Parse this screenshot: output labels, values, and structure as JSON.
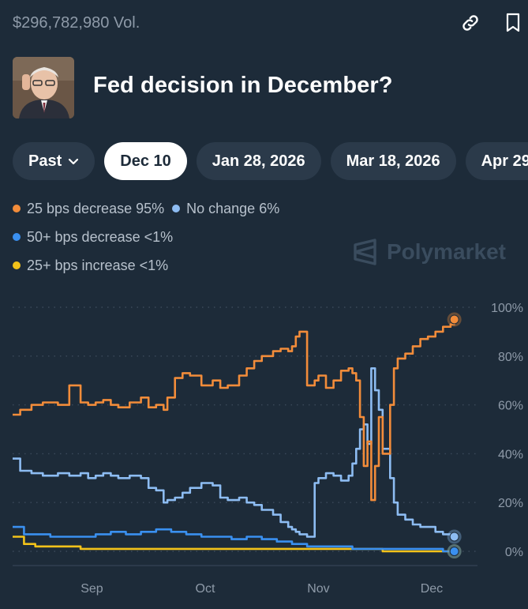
{
  "header": {
    "volume": "$296,782,980 Vol."
  },
  "icons": {
    "link": "link-icon",
    "bookmark": "bookmark-icon"
  },
  "market": {
    "title": "Fed decision in December?",
    "avatar": "fed-chair-portrait"
  },
  "pills": [
    {
      "label": "Past",
      "has_chevron": true,
      "active": false
    },
    {
      "label": "Dec 10",
      "active": true
    },
    {
      "label": "Jan 28, 2026",
      "active": false
    },
    {
      "label": "Mar 18, 2026",
      "active": false
    },
    {
      "label": "Apr 29",
      "active": false
    }
  ],
  "legend": [
    {
      "label": "25 bps decrease 95%",
      "color": "#f28c3a"
    },
    {
      "label": "No change 6%",
      "color": "#8dbcf2"
    },
    {
      "label": "50+ bps decrease <1%",
      "color": "#3a90f0"
    },
    {
      "label": "25+ bps increase <1%",
      "color": "#f2c21a"
    }
  ],
  "watermark": "Polymarket",
  "chart_data": {
    "type": "line",
    "x_ticks": [
      "Sep",
      "Oct",
      "Nov",
      "Dec"
    ],
    "x_tick_positions": [
      21,
      51,
      81,
      111
    ],
    "xlim": [
      0,
      120
    ],
    "ylim": [
      0,
      100
    ],
    "y_ticks": [
      "100%",
      "80%",
      "60%",
      "40%",
      "20%",
      "0%"
    ],
    "y_tick_values": [
      100,
      80,
      60,
      40,
      20,
      0
    ],
    "series": [
      {
        "name": "25 bps decrease",
        "color": "#f28c3a",
        "x": [
          0,
          2,
          5,
          8,
          12,
          15,
          18,
          20,
          22,
          24,
          26,
          28,
          31,
          34,
          36,
          38,
          40,
          41,
          43,
          45,
          47,
          50,
          53,
          55,
          57,
          60,
          62,
          64,
          66,
          69,
          71,
          73,
          74,
          75,
          76,
          78,
          80,
          81,
          83,
          85,
          87,
          89,
          90,
          91,
          92,
          93,
          94,
          95,
          96,
          97,
          98,
          100,
          101,
          102,
          104,
          106,
          108,
          110,
          112,
          114,
          116,
          117
        ],
        "values": [
          56,
          58,
          60,
          61,
          60,
          68,
          61,
          60,
          61,
          62,
          60,
          59,
          61,
          63,
          59,
          60,
          58,
          63,
          71,
          73,
          72,
          68,
          70,
          67,
          68,
          72,
          75,
          78,
          80,
          82,
          83,
          82,
          84,
          88,
          90,
          68,
          70,
          72,
          67,
          70,
          74,
          75,
          73,
          70,
          55,
          35,
          45,
          21,
          35,
          55,
          40,
          60,
          75,
          79,
          81,
          84,
          87,
          88,
          90,
          92,
          93,
          95
        ]
      },
      {
        "name": "No change",
        "color": "#8dbcf2",
        "x": [
          0,
          2,
          5,
          8,
          12,
          15,
          18,
          20,
          22,
          24,
          26,
          28,
          31,
          34,
          36,
          38,
          40,
          41,
          43,
          45,
          47,
          50,
          53,
          55,
          57,
          60,
          62,
          64,
          66,
          69,
          71,
          73,
          74,
          75,
          76,
          78,
          80,
          81,
          83,
          85,
          87,
          89,
          90,
          91,
          92,
          93,
          94,
          95,
          96,
          97,
          98,
          100,
          101,
          102,
          104,
          106,
          108,
          110,
          112,
          114,
          116,
          117
        ],
        "values": [
          38,
          33,
          32,
          31,
          32,
          31,
          32,
          30,
          31,
          32,
          31,
          30,
          31,
          30,
          26,
          25,
          20,
          21,
          22,
          24,
          26,
          28,
          27,
          22,
          21,
          22,
          20,
          19,
          17,
          15,
          12,
          10,
          9,
          8,
          7,
          6,
          28,
          30,
          32,
          31,
          29,
          31,
          36,
          42,
          50,
          52,
          44,
          75,
          66,
          58,
          42,
          30,
          20,
          15,
          13,
          11,
          10,
          10,
          8,
          7,
          6,
          6
        ]
      },
      {
        "name": "50+ bps decrease",
        "color": "#3a90f0",
        "x": [
          0,
          3,
          6,
          10,
          14,
          18,
          22,
          26,
          30,
          34,
          38,
          42,
          46,
          50,
          54,
          58,
          62,
          66,
          70,
          74,
          78,
          82,
          86,
          90,
          94,
          98,
          102,
          106,
          110,
          114,
          117
        ],
        "values": [
          10,
          7,
          7,
          6,
          6,
          6,
          7,
          8,
          7,
          8,
          9,
          8,
          7,
          6,
          6,
          5,
          6,
          5,
          4,
          3,
          2,
          2,
          2,
          1,
          1,
          1,
          1,
          1,
          1,
          0,
          0
        ]
      },
      {
        "name": "25+ bps increase",
        "color": "#f2c21a",
        "x": [
          0,
          3,
          6,
          10,
          14,
          18,
          22,
          26,
          30,
          34,
          38,
          42,
          46,
          50,
          54,
          58,
          62,
          66,
          70,
          74,
          78,
          82,
          86,
          90,
          94,
          98,
          102,
          106,
          110,
          114,
          117
        ],
        "values": [
          6,
          3,
          2,
          2,
          2,
          1,
          1,
          1,
          1,
          1,
          1,
          1,
          1,
          1,
          1,
          1,
          1,
          1,
          1,
          1,
          1,
          1,
          1,
          1,
          1,
          0,
          0,
          0,
          0,
          0,
          0
        ]
      }
    ]
  }
}
